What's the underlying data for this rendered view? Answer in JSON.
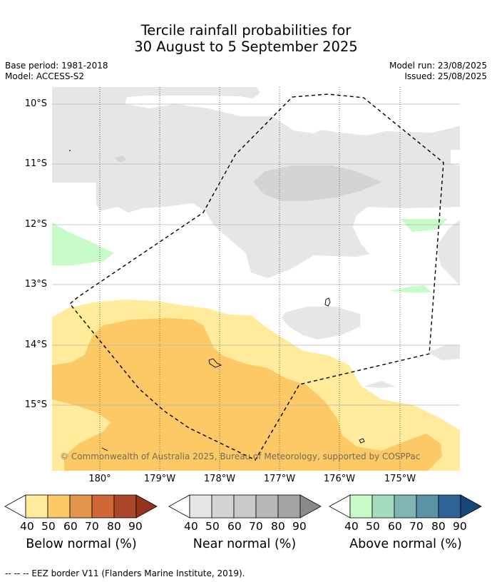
{
  "header": {
    "title_line1": "Tercile rainfall probabilities for",
    "title_line2": "30 August to 5 September 2025",
    "base_period": "Base period: 1981-2018",
    "model": "Model: ACCESS-S2",
    "model_run": "Model run: 23/08/2025",
    "issued": "Issued: 25/08/2025"
  },
  "map": {
    "lat_labels": [
      "10°S",
      "11°S",
      "12°S",
      "13°S",
      "14°S",
      "15°S"
    ],
    "lon_labels": [
      "180°",
      "179°W",
      "178°W",
      "177°W",
      "176°W",
      "175°W"
    ],
    "copyright": "© Commonwealth of Australia 2025, Bureau of Meteorology, supported by COSPPac",
    "region": "EEZ border",
    "colors": {
      "near_normal_light": "#e6e6e6",
      "near_normal_mid": "#d4d4d4",
      "below_40": "#ffeb9b",
      "below_50": "#fdc966",
      "above_40": "#c7fbc7"
    }
  },
  "colorbars": [
    {
      "title": "Below normal (%)",
      "ticks": [
        "40",
        "50",
        "60",
        "70",
        "80",
        "90"
      ],
      "colors": [
        "#ffeb9b",
        "#fdc966",
        "#e2944a",
        "#cf6737",
        "#ad472b",
        "#96331f"
      ]
    },
    {
      "title": "Near normal (%)",
      "ticks": [
        "40",
        "50",
        "60",
        "70",
        "80",
        "90"
      ],
      "colors": [
        "#e6e6e6",
        "#d4d4d4",
        "#c9c9c9",
        "#b7b7b7",
        "#a3a3a3",
        "#8a8a8a"
      ]
    },
    {
      "title": "Above normal (%)",
      "ticks": [
        "40",
        "50",
        "60",
        "70",
        "80",
        "90"
      ],
      "colors": [
        "#c7fbc7",
        "#a5dcbe",
        "#7fb6b1",
        "#5a93a4",
        "#2e6396",
        "#16467a"
      ]
    }
  ],
  "footer": "--  --  -- EEZ border V11 (Flanders Marine Institute, 2019)."
}
